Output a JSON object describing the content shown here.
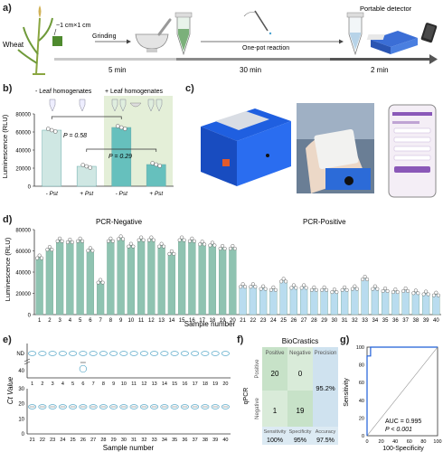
{
  "panel_a": {
    "label": "a)",
    "wheat_label": "Wheat",
    "size_label": "~1 cm×1 cm",
    "step1": "Grinding",
    "step2": "One-pot reaction",
    "step3": "Portable detector",
    "time1": "5 min",
    "time2": "30 min",
    "time3": "2 min"
  },
  "panel_b": {
    "label": "b)",
    "header_minus": "- Leaf homogenates",
    "header_plus": "+ Leaf homogenates",
    "p1": "P = 0.58",
    "p2": "P = 0.29",
    "chart_data": {
      "type": "bar",
      "categories": [
        "- Pst",
        "+ Pst",
        "- Pst",
        "+ Pst"
      ],
      "values": [
        62000,
        22000,
        65000,
        24000
      ],
      "ylabel": "Luminescence (RLU)",
      "ylim": [
        0,
        80000
      ],
      "yticks": [
        "0",
        "20000",
        "40000",
        "60000",
        "80000"
      ],
      "colors": [
        "#cfe7e3",
        "#cfe7e3",
        "#66c0bd",
        "#66c0bd"
      ]
    }
  },
  "panel_c": {
    "label": "c)"
  },
  "panel_d": {
    "label": "d)",
    "neg_title": "PCR-Negative",
    "pos_title": "PCR-Positive",
    "chart_data": {
      "type": "bar",
      "xlabel": "Sample number",
      "ylabel": "Luminescence (RLU)",
      "ylim": [
        0,
        80000
      ],
      "yticks": [
        "0",
        "20000",
        "40000",
        "60000",
        "80000"
      ],
      "categories": [
        "1",
        "2",
        "3",
        "4",
        "5",
        "6",
        "7",
        "8",
        "9",
        "10",
        "11",
        "12",
        "13",
        "14",
        "15",
        "16",
        "17",
        "18",
        "19",
        "20",
        "21",
        "22",
        "23",
        "24",
        "25",
        "26",
        "27",
        "28",
        "29",
        "30",
        "31",
        "32",
        "33",
        "34",
        "35",
        "36",
        "37",
        "38",
        "39",
        "40"
      ],
      "values": [
        54000,
        62000,
        70000,
        69000,
        70000,
        61000,
        31000,
        70000,
        72000,
        65000,
        71000,
        71000,
        65000,
        58000,
        71000,
        70000,
        67000,
        66000,
        63000,
        63000,
        27000,
        27000,
        25000,
        24000,
        32000,
        26000,
        26000,
        24000,
        24000,
        22000,
        24000,
        25000,
        34000,
        25000,
        23000,
        22000,
        23000,
        21000,
        20000,
        19000
      ],
      "colors": {
        "negative": "#8fc3b1",
        "positive": "#b9dcef"
      }
    }
  },
  "panel_e": {
    "label": "e)",
    "ylabel": "Ct Value",
    "xlabel": "Sample number",
    "top_ticks": [
      "1",
      "2",
      "3",
      "4",
      "5",
      "6",
      "7",
      "8",
      "9",
      "10",
      "11",
      "12",
      "13",
      "14",
      "15",
      "16",
      "17",
      "18",
      "19",
      "20"
    ],
    "bottom_ticks": [
      "21",
      "22",
      "23",
      "24",
      "25",
      "26",
      "27",
      "28",
      "29",
      "30",
      "31",
      "32",
      "33",
      "34",
      "35",
      "36",
      "37",
      "38",
      "39",
      "40"
    ],
    "yticks": [
      "ND",
      "40",
      "30",
      "20",
      "10",
      "0"
    ]
  },
  "panel_f": {
    "label": "f)",
    "title": "BioCrastics",
    "row_axis": "qPCR",
    "col_positive": "Positive",
    "col_negative": "Negative",
    "col_precision": "Precision",
    "row_positive": "Positive",
    "row_negative": "Negative",
    "tp": "20",
    "fp": "0",
    "fn": "1",
    "tn": "19",
    "precision": "95.2%",
    "sensitivity_label": "Sensitivity",
    "specificity_label": "Specificity",
    "accuracy_label": "Accuracy",
    "sensitivity": "100%",
    "specificity": "95%",
    "accuracy": "97.5%"
  },
  "panel_g": {
    "label": "g)",
    "auc": "AUC = 0.995",
    "p": "P < 0.001",
    "chart_data": {
      "type": "line",
      "xlabel": "100-Specificity",
      "ylabel": "Sensitivity",
      "xlim": [
        0,
        100
      ],
      "ylim": [
        0,
        100
      ],
      "xticks": [
        "0",
        "20",
        "40",
        "60",
        "80",
        "100"
      ],
      "yticks": [
        "0",
        "20",
        "40",
        "60",
        "80",
        "100"
      ],
      "roc_x": [
        0,
        0,
        5,
        5,
        100
      ],
      "roc_y": [
        0,
        90,
        90,
        100,
        100
      ]
    }
  }
}
